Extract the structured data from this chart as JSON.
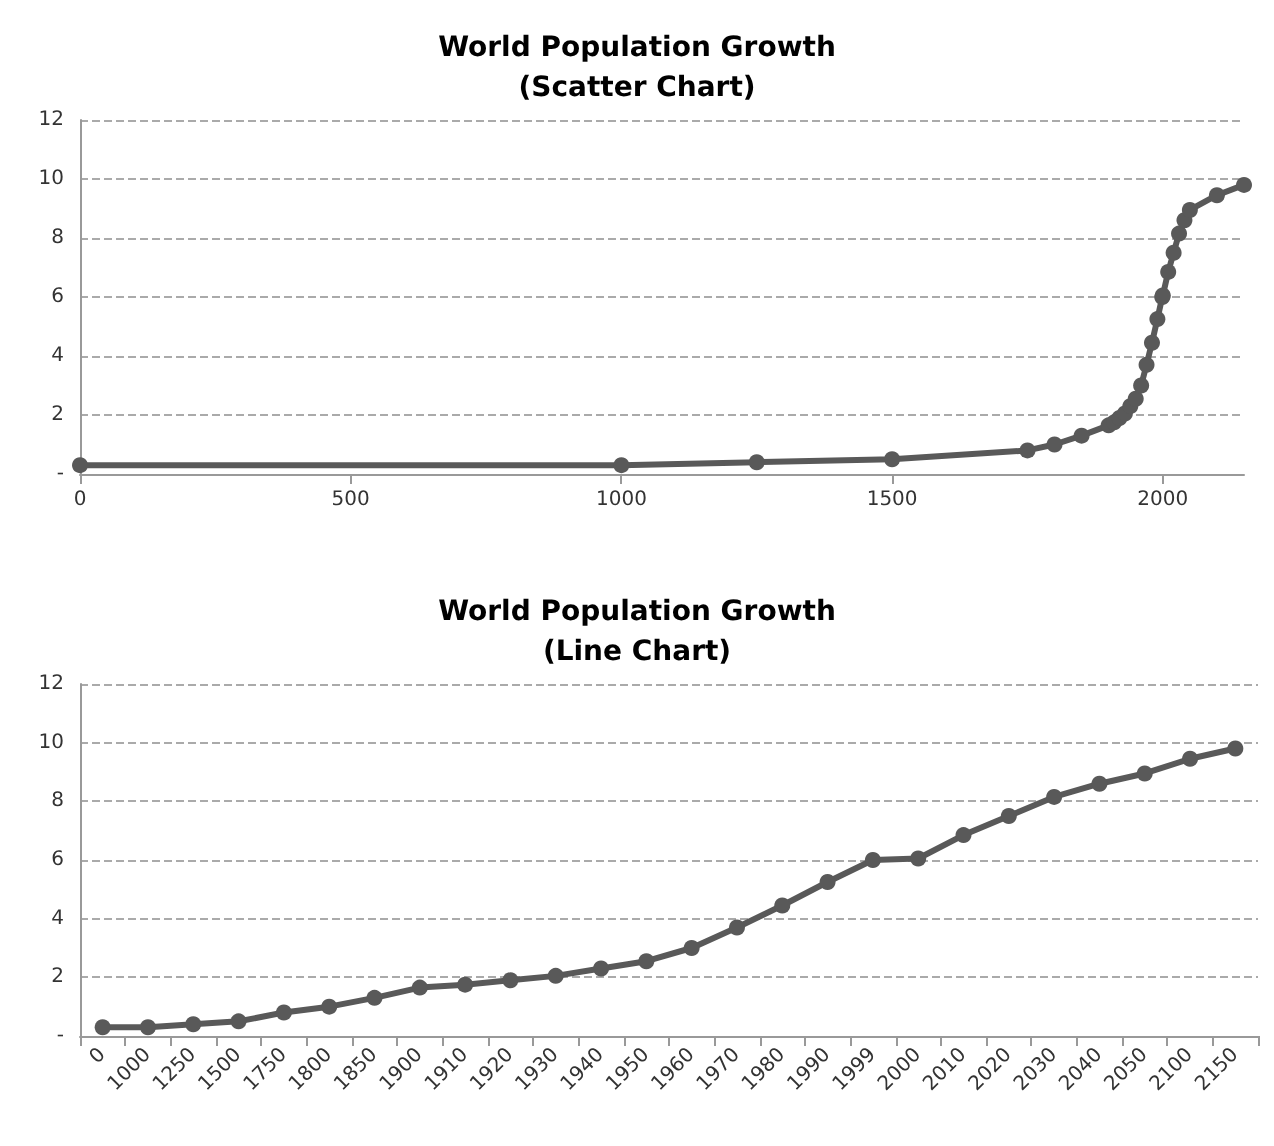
{
  "chart_data": [
    {
      "type": "line",
      "title": "World Population Growth",
      "subtitle": "(Scatter Chart)",
      "x": [
        0,
        1000,
        1250,
        1500,
        1750,
        1800,
        1850,
        1900,
        1910,
        1920,
        1930,
        1940,
        1950,
        1960,
        1970,
        1980,
        1990,
        1999,
        2000,
        2010,
        2020,
        2030,
        2040,
        2050,
        2100,
        2150
      ],
      "series": [
        {
          "color": "#595959",
          "values": [
            0.3,
            0.3,
            0.4,
            0.5,
            0.8,
            1.0,
            1.3,
            1.65,
            1.75,
            1.9,
            2.05,
            2.3,
            2.55,
            3.0,
            3.7,
            4.45,
            5.25,
            6.0,
            6.05,
            6.85,
            7.5,
            8.15,
            8.6,
            8.95,
            9.45,
            9.8
          ]
        }
      ],
      "xlim": [
        0,
        2150
      ],
      "xticks": [
        0,
        500,
        1000,
        1500,
        2000
      ],
      "ylim": [
        0,
        12
      ],
      "yticks": [
        {
          "value": 0,
          "label": "-"
        },
        2,
        4,
        6,
        8,
        10,
        12
      ],
      "grid": "y",
      "marker": "circle",
      "line_style": "solid"
    },
    {
      "type": "line",
      "title": "World Population Growth",
      "subtitle": "(Line Chart)",
      "categories": [
        "0",
        "1000",
        "1250",
        "1500",
        "1750",
        "1800",
        "1850",
        "1900",
        "1910",
        "1920",
        "1930",
        "1940",
        "1950",
        "1960",
        "1970",
        "1980",
        "1990",
        "1999",
        "2000",
        "2010",
        "2020",
        "2030",
        "2040",
        "2050",
        "2100",
        "2150"
      ],
      "series": [
        {
          "color": "#595959",
          "values": [
            0.3,
            0.3,
            0.4,
            0.5,
            0.8,
            1.0,
            1.3,
            1.65,
            1.75,
            1.9,
            2.05,
            2.3,
            2.55,
            3.0,
            3.7,
            4.45,
            5.25,
            6.0,
            6.05,
            6.85,
            7.5,
            8.15,
            8.6,
            8.95,
            9.45,
            9.8
          ]
        }
      ],
      "ylim": [
        0,
        12
      ],
      "yticks": [
        {
          "value": 0,
          "label": "-"
        },
        2,
        4,
        6,
        8,
        10,
        12
      ],
      "grid": "y",
      "marker": "circle",
      "line_style": "solid"
    }
  ]
}
